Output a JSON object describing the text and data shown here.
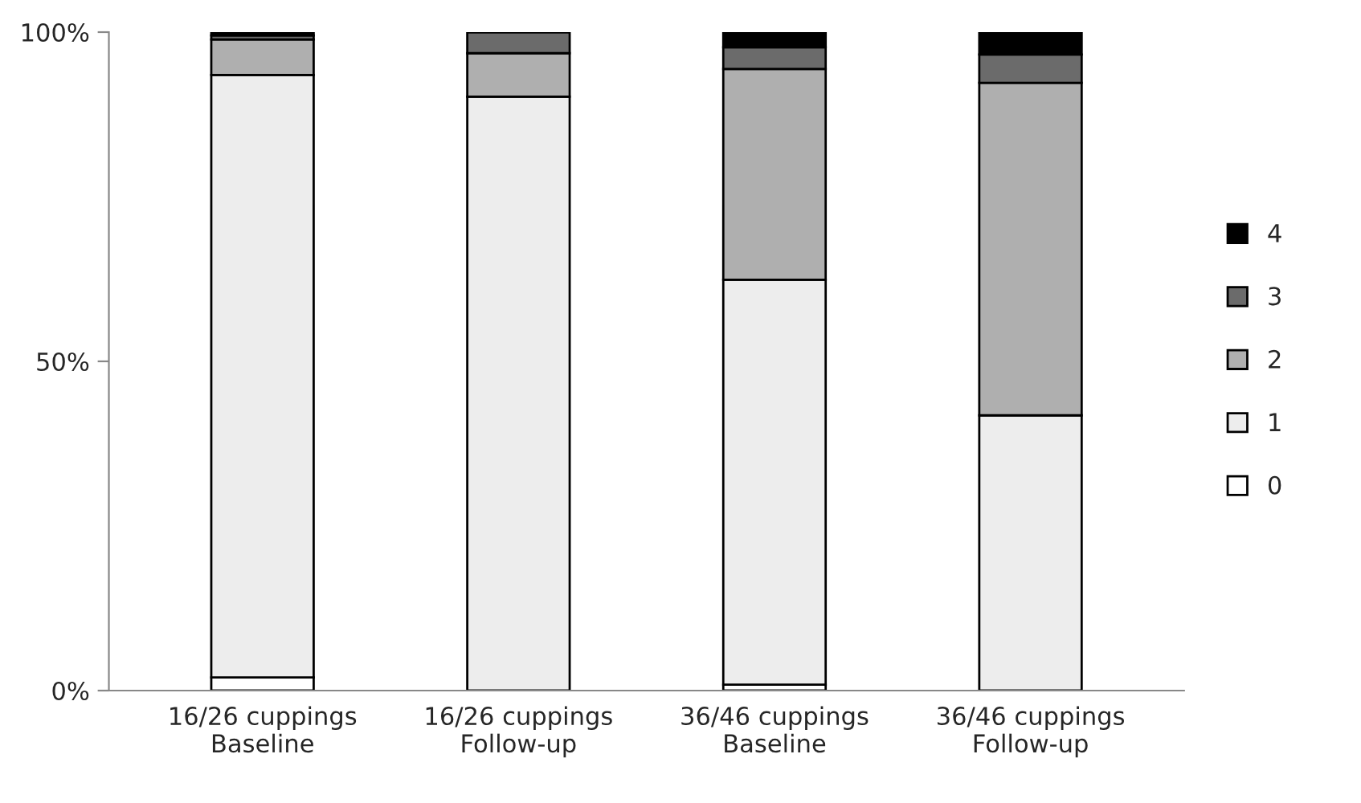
{
  "chart_data": {
    "type": "bar",
    "stacked": true,
    "categories": [
      "16/26 cuppings\nBaseline",
      "16/26 cuppings\nFollow-up",
      "36/46 cuppings\nBaseline",
      "36/46 cuppings\nFollow-up"
    ],
    "series": [
      {
        "name": "0",
        "color": "#ffffff",
        "values": [
          2.0,
          0,
          0.9,
          0
        ]
      },
      {
        "name": "1",
        "color": "#ededed",
        "values": [
          91.5,
          90.2,
          61.5,
          41.8
        ]
      },
      {
        "name": "2",
        "color": "#afafaf",
        "values": [
          5.4,
          6.6,
          32.0,
          50.5
        ]
      },
      {
        "name": "3",
        "color": "#6b6b6b",
        "values": [
          0.6,
          3.2,
          3.3,
          4.3
        ]
      },
      {
        "name": "4",
        "color": "#000000",
        "values": [
          0.5,
          0,
          2.3,
          3.4
        ]
      }
    ],
    "ylim": [
      0,
      100
    ],
    "yticks": [
      {
        "value": 0,
        "label": "0%"
      },
      {
        "value": 50,
        "label": "50%"
      },
      {
        "value": 100,
        "label": "100%"
      }
    ],
    "grid": false,
    "legend": "right"
  }
}
